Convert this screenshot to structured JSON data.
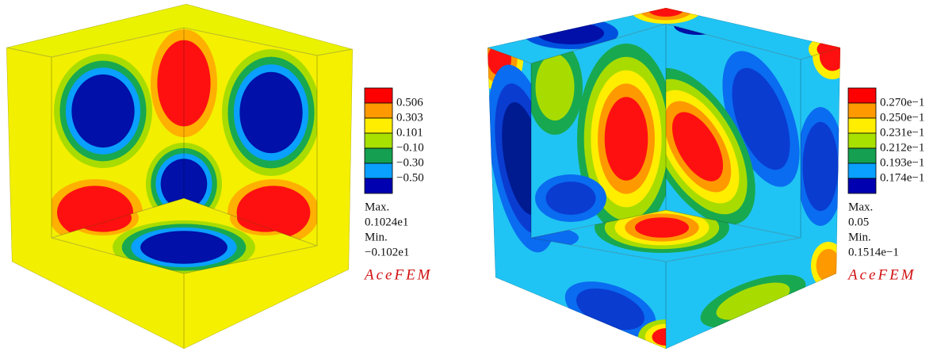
{
  "panels": [
    {
      "legend": {
        "labels": [
          "0.506",
          "0.303",
          "0.101",
          "−0.10",
          "−0.30",
          "−0.50"
        ]
      },
      "max_label": "Max.",
      "max_value": "0.1024e1",
      "min_label": "Min.",
      "min_value": "−0.102e1",
      "brand": "AceFEM"
    },
    {
      "legend": {
        "labels": [
          "0.270e−1",
          "0.250e−1",
          "0.231e−1",
          "0.212e−1",
          "0.193e−1",
          "0.174e−1"
        ]
      },
      "max_label": "Max.",
      "max_value": "0.05",
      "min_label": "Min.",
      "min_value": "0.1514e−1",
      "brand": "AceFEM"
    }
  ]
}
